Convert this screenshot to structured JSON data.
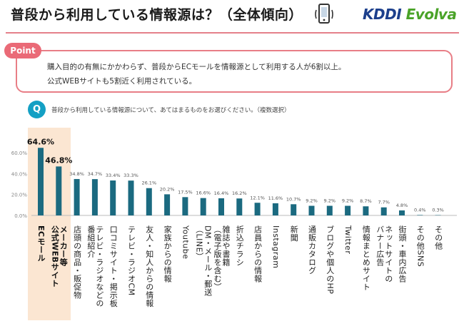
{
  "header": {
    "title": "普段から利用している情報源は？（全体傾向）",
    "logo_kddi": "KDDI",
    "logo_evolva": "Evolva"
  },
  "point": {
    "badge": "Point",
    "line1": "購入目的の有無にかかわらず、普段からECモールを情報源として利用する人が6割以上。",
    "line2": "公式WEBサイトも5割近く利用されている。"
  },
  "question": {
    "badge": "Q",
    "text": "普段から利用している情報源について、あてはまるものをお選びください。（複数選択）"
  },
  "colors": {
    "bar": "#1b6a80",
    "accent": "#e87e86",
    "highlight": "#fbe6d2"
  },
  "chart_data": {
    "type": "bar",
    "categories": [
      "ECモール",
      "メーカー等公式WEBサイト",
      "店頭の商品・販促物",
      "テレビ・ラジオなどの番組紹介",
      "口コミサイト・掲示板",
      "テレビ・ラジオCM",
      "友人・知人からの情報",
      "家族からの情報",
      "Youtube",
      "DM・メール・郵送（LINE）",
      "雑誌や書籍（電子版を含む）",
      "折込チラシ",
      "店員からの情報",
      "Instagram",
      "新聞",
      "通販カタログ",
      "ブログや個人のHP",
      "Twitter",
      "情報まとめサイト",
      "ネットサイトのバナー広告",
      "街頭・車内広告",
      "その他SNS",
      "その他"
    ],
    "label_lines": [
      [
        "ECモール"
      ],
      [
        "メーカー等",
        "公式WEBサイト"
      ],
      [
        "店頭の商品・販促物"
      ],
      [
        "テレビ・ラジオなどの",
        "番組紹介"
      ],
      [
        "口コミサイト・掲示板"
      ],
      [
        "テレビ・ラジオCM"
      ],
      [
        "友人・知人からの情報"
      ],
      [
        "家族からの情報"
      ],
      [
        "Youtube"
      ],
      [
        "DM・メール・郵送",
        "（LINE）"
      ],
      [
        "雑誌や書籍",
        "（電子版を含む）"
      ],
      [
        "折込チラシ"
      ],
      [
        "店員からの情報"
      ],
      [
        "Instagram"
      ],
      [
        "新聞"
      ],
      [
        "通販カタログ"
      ],
      [
        "ブログや個人のHP"
      ],
      [
        "Twitter"
      ],
      [
        "情報まとめサイト"
      ],
      [
        "ネットサイトの",
        "バナー広告"
      ],
      [
        "街頭・車内広告"
      ],
      [
        "その他SNS"
      ],
      [
        "その他"
      ]
    ],
    "values": [
      64.6,
      46.8,
      34.8,
      34.7,
      33.4,
      33.3,
      26.1,
      20.2,
      17.5,
      16.6,
      16.4,
      16.2,
      12.1,
      11.6,
      10.7,
      9.2,
      9.2,
      9.2,
      8.7,
      7.7,
      4.8,
      0.4,
      0.3
    ],
    "value_labels": [
      "64.6%",
      "46.8%",
      "34.8%",
      "34.7%",
      "33.4%",
      "33.3%",
      "26.1%",
      "20.2%",
      "17.5%",
      "16.6%",
      "16.4%",
      "16.2%",
      "12.1%",
      "11.6%",
      "10.7%",
      "9.2%",
      "9.2%",
      "9.2%",
      "8.7%",
      "7.7%",
      "4.8%",
      "0.4%",
      "0.3%"
    ],
    "highlighted": [
      0,
      1
    ],
    "yticks": [
      0,
      20,
      40,
      60
    ],
    "ytick_labels": [
      "0.0%",
      "20.0%",
      "40.0%",
      "60.0%"
    ],
    "ylim": [
      0,
      70
    ],
    "grid": false,
    "legend": "none"
  }
}
